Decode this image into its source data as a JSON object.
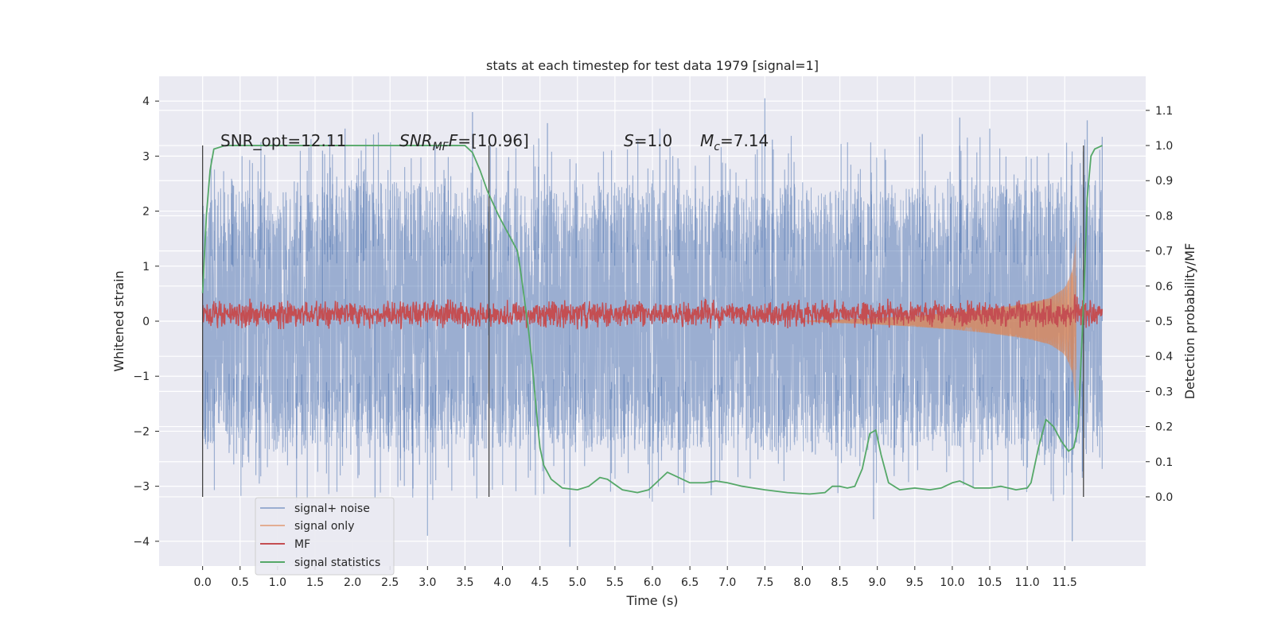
{
  "chart_data": {
    "type": "line",
    "title": "stats at each timestep for test data 1979 [signal=1]",
    "xlabel": "Time (s)",
    "ylabel": "Whitened strain",
    "ylabel_right": "Detection probability/MF",
    "xlim": [
      -0.58,
      12.58
    ],
    "ylim": [
      -4.45,
      4.45
    ],
    "ylim_right": [
      -0.197,
      1.197
    ],
    "xticks": [
      0.0,
      0.5,
      1.0,
      1.5,
      2.0,
      2.5,
      3.0,
      3.5,
      4.0,
      4.5,
      5.0,
      5.5,
      6.0,
      6.5,
      7.0,
      7.5,
      8.0,
      8.5,
      9.0,
      9.5,
      10.0,
      10.5,
      11.0,
      11.5
    ],
    "xtick_labels": [
      "0.0",
      "0.5",
      "1.0",
      "1.5",
      "2.0",
      "2.5",
      "3.0",
      "3.5",
      "4.0",
      "4.5",
      "5.0",
      "5.5",
      "6.0",
      "6.5",
      "7.0",
      "7.5",
      "8.0",
      "8.5",
      "9.0",
      "9.5",
      "10.0",
      "10.5",
      "11.0",
      "11.5"
    ],
    "yticks": [
      -4,
      -3,
      -2,
      -1,
      0,
      1,
      2,
      3,
      4
    ],
    "ytick_labels": [
      "−4",
      "−3",
      "−2",
      "−1",
      "0",
      "1",
      "2",
      "3",
      "4"
    ],
    "yticks_right": [
      0.0,
      0.1,
      0.2,
      0.3,
      0.4,
      0.5,
      0.6,
      0.7,
      0.8,
      0.9,
      1.0,
      1.1
    ],
    "ytick_labels_right": [
      "0.0",
      "0.1",
      "0.2",
      "0.3",
      "0.4",
      "0.5",
      "0.6",
      "0.7",
      "0.8",
      "0.9",
      "1.0",
      "1.1"
    ],
    "grid": true,
    "legend_position": "bottom-left",
    "annotations": [
      {
        "id": "snr-opt",
        "text": "SNR_opt=12.11",
        "x": 0.2
      },
      {
        "id": "snr-mf",
        "text": "SNR_MF=[10.96]",
        "x": 2.6
      },
      {
        "id": "s",
        "text": "S=1.0",
        "x": 5.6
      },
      {
        "id": "mc",
        "text": "M_c=7.14",
        "x": 6.6
      }
    ],
    "vertical_lines_x": [
      0.0,
      3.82,
      11.75
    ],
    "series": [
      {
        "name": "signal+ noise",
        "color": "#4c72b0",
        "axis": "left",
        "x_range": [
          0.0,
          12.0
        ],
        "envelope_upper": [
          [
            0.0,
            2.3
          ],
          [
            0.5,
            2.5
          ],
          [
            1.0,
            2.3
          ],
          [
            2.0,
            2.6
          ],
          [
            3.0,
            2.5
          ],
          [
            4.0,
            2.4
          ],
          [
            5.0,
            2.5
          ],
          [
            6.0,
            2.4
          ],
          [
            7.0,
            2.5
          ],
          [
            8.0,
            2.5
          ],
          [
            9.0,
            2.4
          ],
          [
            10.0,
            2.5
          ],
          [
            11.0,
            2.5
          ],
          [
            11.5,
            2.6
          ],
          [
            12.0,
            2.5
          ]
        ],
        "envelope_lower": [
          [
            0.0,
            -2.2
          ],
          [
            0.5,
            -2.3
          ],
          [
            1.0,
            -2.4
          ],
          [
            2.0,
            -2.3
          ],
          [
            3.0,
            -2.4
          ],
          [
            4.0,
            -2.3
          ],
          [
            5.0,
            -2.3
          ],
          [
            6.0,
            -2.4
          ],
          [
            7.0,
            -2.3
          ],
          [
            8.0,
            -2.4
          ],
          [
            9.0,
            -2.4
          ],
          [
            10.0,
            -2.3
          ],
          [
            11.0,
            -2.4
          ],
          [
            11.5,
            -2.5
          ],
          [
            12.0,
            -2.4
          ]
        ],
        "peaks": [
          [
            1.6,
            3.1
          ],
          [
            1.9,
            3.5
          ],
          [
            2.3,
            -3.2
          ],
          [
            3.0,
            -3.9
          ],
          [
            3.1,
            3.2
          ],
          [
            3.6,
            3.8
          ],
          [
            4.6,
            3.6
          ],
          [
            4.9,
            -4.1
          ],
          [
            6.1,
            3.5
          ],
          [
            7.5,
            4.05
          ],
          [
            7.6,
            3.3
          ],
          [
            8.95,
            -3.6
          ],
          [
            9.6,
            3.4
          ],
          [
            10.1,
            3.7
          ],
          [
            10.5,
            3.5
          ],
          [
            11.6,
            -4.0
          ],
          [
            11.8,
            3.65
          ],
          [
            12.0,
            3.35
          ]
        ]
      },
      {
        "name": "signal only",
        "color": "#dd8452",
        "axis": "left",
        "envelope": [
          [
            8.0,
            0.0
          ],
          [
            8.5,
            0.03
          ],
          [
            9.0,
            0.06
          ],
          [
            9.5,
            0.1
          ],
          [
            10.0,
            0.15
          ],
          [
            10.5,
            0.22
          ],
          [
            11.0,
            0.32
          ],
          [
            11.3,
            0.42
          ],
          [
            11.5,
            0.6
          ],
          [
            11.6,
            0.9
          ],
          [
            11.65,
            1.5
          ]
        ]
      },
      {
        "name": "MF",
        "color": "#c44e52",
        "axis": "right",
        "x_range": [
          0.0,
          12.0
        ],
        "baseline": 0.52,
        "amplitude": 0.03
      },
      {
        "name": "signal statistics",
        "color": "#55a868",
        "axis": "right",
        "points": [
          [
            0.0,
            0.58
          ],
          [
            0.05,
            0.8
          ],
          [
            0.1,
            0.93
          ],
          [
            0.15,
            0.99
          ],
          [
            0.3,
            1.0
          ],
          [
            3.5,
            1.0
          ],
          [
            3.6,
            0.98
          ],
          [
            3.7,
            0.93
          ],
          [
            3.8,
            0.87
          ],
          [
            3.95,
            0.8
          ],
          [
            4.1,
            0.74
          ],
          [
            4.2,
            0.7
          ],
          [
            4.25,
            0.63
          ],
          [
            4.3,
            0.55
          ],
          [
            4.35,
            0.47
          ],
          [
            4.4,
            0.37
          ],
          [
            4.45,
            0.25
          ],
          [
            4.5,
            0.14
          ],
          [
            4.55,
            0.09
          ],
          [
            4.65,
            0.05
          ],
          [
            4.8,
            0.025
          ],
          [
            5.0,
            0.02
          ],
          [
            5.15,
            0.03
          ],
          [
            5.3,
            0.055
          ],
          [
            5.4,
            0.05
          ],
          [
            5.6,
            0.02
          ],
          [
            5.8,
            0.012
          ],
          [
            5.95,
            0.02
          ],
          [
            6.1,
            0.05
          ],
          [
            6.2,
            0.07
          ],
          [
            6.3,
            0.06
          ],
          [
            6.5,
            0.04
          ],
          [
            6.7,
            0.04
          ],
          [
            6.85,
            0.045
          ],
          [
            7.0,
            0.04
          ],
          [
            7.2,
            0.03
          ],
          [
            7.5,
            0.02
          ],
          [
            7.8,
            0.012
          ],
          [
            8.1,
            0.008
          ],
          [
            8.3,
            0.012
          ],
          [
            8.4,
            0.03
          ],
          [
            8.5,
            0.03
          ],
          [
            8.6,
            0.025
          ],
          [
            8.7,
            0.03
          ],
          [
            8.8,
            0.08
          ],
          [
            8.9,
            0.18
          ],
          [
            8.98,
            0.19
          ],
          [
            9.05,
            0.12
          ],
          [
            9.15,
            0.04
          ],
          [
            9.3,
            0.02
          ],
          [
            9.5,
            0.025
          ],
          [
            9.7,
            0.02
          ],
          [
            9.85,
            0.025
          ],
          [
            10.0,
            0.04
          ],
          [
            10.1,
            0.045
          ],
          [
            10.3,
            0.025
          ],
          [
            10.5,
            0.025
          ],
          [
            10.65,
            0.03
          ],
          [
            10.85,
            0.02
          ],
          [
            11.0,
            0.025
          ],
          [
            11.05,
            0.04
          ],
          [
            11.15,
            0.14
          ],
          [
            11.25,
            0.22
          ],
          [
            11.35,
            0.2
          ],
          [
            11.45,
            0.16
          ],
          [
            11.55,
            0.13
          ],
          [
            11.62,
            0.14
          ],
          [
            11.68,
            0.2
          ],
          [
            11.72,
            0.4
          ],
          [
            11.76,
            0.6
          ],
          [
            11.8,
            0.85
          ],
          [
            11.85,
            0.97
          ],
          [
            11.9,
            0.99
          ],
          [
            12.0,
            1.0
          ]
        ]
      }
    ]
  }
}
